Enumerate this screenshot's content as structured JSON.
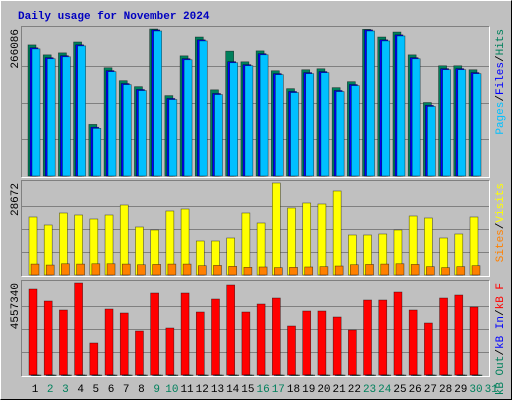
{
  "chart_data": [
    {
      "type": "bar",
      "title": "Daily usage for November 2024",
      "legend_separator": "/",
      "ylim": [
        0,
        266086
      ],
      "yticks": [
        266086
      ],
      "series": [
        {
          "name": "Hits",
          "color": "#00805c",
          "values": [
            237300,
            219300,
            222900,
            242600,
            93400,
            195900,
            172500,
            161700,
            266086,
            145500,
            217500,
            251600,
            156000,
            226000,
            206700,
            226500,
            190500,
            158100,
            192300,
            194100,
            159900,
            170700,
            265500,
            251600,
            260600,
            219300,
            133000,
            199500,
            199500,
            192300,
            null
          ]
        },
        {
          "name": "Files",
          "color": "#0000ff",
          "values": [
            232100,
            214200,
            217800,
            237500,
            88300,
            190800,
            167400,
            156600,
            264500,
            140400,
            212400,
            246500,
            149400,
            207000,
            201600,
            221400,
            185400,
            153000,
            187200,
            189000,
            154800,
            165600,
            264500,
            246500,
            255500,
            214200,
            127900,
            194400,
            194400,
            187200,
            null
          ]
        },
        {
          "name": "Pages",
          "color": "#00c0ff",
          "values": [
            230100,
            212200,
            215800,
            235500,
            86300,
            188800,
            165400,
            154600,
            262500,
            138400,
            210400,
            244500,
            147400,
            205000,
            199600,
            219400,
            183400,
            151000,
            185200,
            187000,
            152800,
            163600,
            262500,
            244500,
            253500,
            212200,
            125900,
            192400,
            192400,
            185200,
            null
          ]
        }
      ]
    },
    {
      "type": "bar",
      "legend_separator": "/",
      "ylim": [
        0,
        28672
      ],
      "yticks": [
        28672
      ],
      "series": [
        {
          "name": "Visits",
          "color": "#ffff00",
          "values": [
            18079,
            15584,
            19325,
            18701,
            17454,
            18701,
            21818,
            14961,
            14026,
            19948,
            20571,
            10597,
            10597,
            11532,
            19325,
            16208,
            28672,
            20883,
            22442,
            22130,
            26182,
            12467,
            12467,
            12779,
            14026,
            18390,
            17766,
            11532,
            12779,
            18078,
            null
          ]
        },
        {
          "name": "Sites",
          "color": "#ff8000",
          "values": [
            3400,
            3100,
            3500,
            3400,
            3500,
            3500,
            3400,
            3200,
            3300,
            3400,
            3400,
            2900,
            3000,
            2700,
            2400,
            2500,
            2300,
            2400,
            2500,
            2600,
            2800,
            3200,
            3300,
            3400,
            3500,
            3300,
            2600,
            2300,
            2600,
            2900,
            null
          ]
        }
      ]
    },
    {
      "type": "bar",
      "legend_separator": "/",
      "categories": [
        "1",
        "2",
        "3",
        "4",
        "5",
        "6",
        "7",
        "8",
        "9",
        "10",
        "11",
        "12",
        "13",
        "14",
        "15",
        "16",
        "17",
        "18",
        "19",
        "20",
        "21",
        "22",
        "23",
        "24",
        "25",
        "26",
        "27",
        "28",
        "29",
        "30",
        "31"
      ],
      "category_colors": [
        "#000000",
        "#00805c",
        "#00805c",
        "#000000",
        "#000000",
        "#000000",
        "#000000",
        "#000000",
        "#00805c",
        "#00805c",
        "#000000",
        "#000000",
        "#000000",
        "#000000",
        "#000000",
        "#00805c",
        "#00805c",
        "#000000",
        "#000000",
        "#000000",
        "#000000",
        "#000000",
        "#00805c",
        "#00805c",
        "#000000",
        "#000000",
        "#000000",
        "#000000",
        "#000000",
        "#00805c",
        "#00805c"
      ],
      "ylim": [
        0,
        4557340
      ],
      "yticks": [
        4557340
      ],
      "series": [
        {
          "name": "kB F",
          "color": "#ff0000",
          "values": [
            4260100,
            3665700,
            3219800,
            4557340,
            1585200,
            3269400,
            3071200,
            2179600,
            4062000,
            2328200,
            4062000,
            3120800,
            3764700,
            4458200,
            3120800,
            3517100,
            3814300,
            2427300,
            3170300,
            3170300,
            2873100,
            2229100,
            3715200,
            3715200,
            4111500,
            3219800,
            2575900,
            3814300,
            3962900,
            3368400,
            null
          ]
        },
        {
          "name": "kB In",
          "color": "#0000ff",
          "values": [
            0,
            0,
            0,
            0,
            0,
            0,
            0,
            0,
            0,
            0,
            0,
            0,
            0,
            0,
            0,
            0,
            0,
            0,
            0,
            0,
            0,
            0,
            0,
            0,
            0,
            0,
            0,
            0,
            0,
            0,
            null
          ]
        },
        {
          "name": "kB Out",
          "color": "#00805c",
          "values": [
            0,
            0,
            0,
            0,
            0,
            0,
            0,
            0,
            0,
            0,
            0,
            0,
            0,
            0,
            0,
            0,
            0,
            0,
            0,
            0,
            0,
            0,
            0,
            0,
            0,
            0,
            0,
            0,
            0,
            0,
            null
          ]
        }
      ]
    }
  ]
}
